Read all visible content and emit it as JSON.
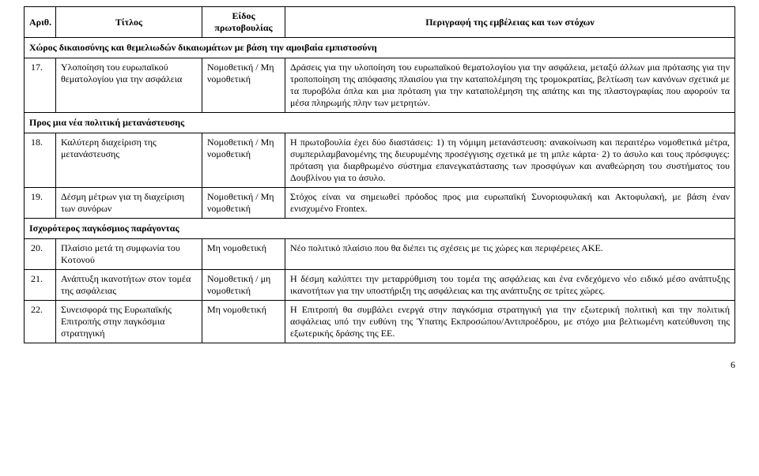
{
  "header": {
    "col1": "Αριθ.",
    "col2": "Τίτλος",
    "col3": "Είδος πρωτοβουλίας",
    "col4": "Περιγραφή της εμβέλειας και των στόχων"
  },
  "sections": {
    "s1": "Χώρος δικαιοσύνης και θεμελιωδών δικαιωμάτων με βάση την αμοιβαία εμπιστοσύνη",
    "s2": "Προς μια νέα πολιτική μετανάστευσης",
    "s3": "Ισχυρότερος παγκόσμιος παράγοντας"
  },
  "rows": {
    "r17": {
      "num": "17.",
      "title": "Υλοποίηση του ευρωπαϊκού θεματολογίου για την ασφάλεια",
      "type": "Νομοθετική / Μη νομοθετική",
      "desc": "Δράσεις για την υλοποίηση του ευρωπαϊκού θεματολογίου για την ασφάλεια, μεταξύ άλλων μια πρότασης για την τροποποίηση της απόφασης πλαισίου για την καταπολέμηση της τρομοκρατίας, βελτίωση των κανόνων σχετικά με τα πυροβόλα όπλα και μια πρόταση για την καταπολέμηση της απάτης και της πλαστογραφίας που αφορούν τα μέσα πληρωμής πλην των μετρητών."
    },
    "r18": {
      "num": "18.",
      "title": "Καλύτερη διαχείριση της μετανάστευσης",
      "type": "Νομοθετική / Μη νομοθετική",
      "desc": "Η πρωτοβουλία έχει δύο διαστάσεις: 1) τη νόμιμη μετανάστευση: ανακοίνωση και περαιτέρω νομοθετικά μέτρα, συμπεριλαμβανομένης της διευρυμένης προσέγγισης σχετικά με τη μπλε κάρτα· 2) το άσυλο και τους πρόσφυγες: πρόταση για διαρθρωμένο σύστημα επανεγκατάστασης των προσφύγων και αναθεώρηση του συστήματος του Δουβλίνου για το άσυλο."
    },
    "r19": {
      "num": "19.",
      "title": "Δέσμη μέτρων για τη διαχείριση των συνόρων",
      "type": "Νομοθετική / Μη νομοθετική",
      "desc": "Στόχος είναι να σημειωθεί πρόοδος προς μια ευρωπαϊκή Συνοριοφυλακή και Ακτοφυλακή, με βάση έναν ενισχυμένο Frontex."
    },
    "r20": {
      "num": "20.",
      "title": "Πλαίσιο μετά τη συμφωνία του Κοτονού",
      "type": "Μη νομοθετική",
      "desc": "Νέο πολιτικό πλαίσιο που θα διέπει τις σχέσεις με τις χώρες και περιφέρειες ΑΚΕ."
    },
    "r21": {
      "num": "21.",
      "title": "Ανάπτυξη ικανοτήτων στον τομέα της ασφάλειας",
      "type": "Νομοθετική / μη νομοθετική",
      "desc": "Η δέσμη καλύπτει την μεταρρύθμιση του τομέα της ασφάλειας και ένα ενδεχόμενο νέο ειδικό μέσο ανάπτυξης ικανοτήτων για την υποστήριξη της ασφάλειας και της ανάπτυξης σε τρίτες χώρες."
    },
    "r22": {
      "num": "22.",
      "title": "Συνεισφορά της Ευρωπαϊκής Επιτροπής στην παγκόσμια στρατηγική",
      "type": "Μη νομοθετική",
      "desc": "Η Επιτροπή θα συμβάλει ενεργά στην παγκόσμια στρατηγική για την εξωτερική πολιτική και την πολιτική ασφάλειας υπό την ευθύνη της Ύπατης Εκπροσώπου/Αντιπροέδρου, με στόχο μια βελτιωμένη κατεύθυνση της εξωτερικής δράσης της ΕΕ."
    }
  },
  "page_number": "6"
}
